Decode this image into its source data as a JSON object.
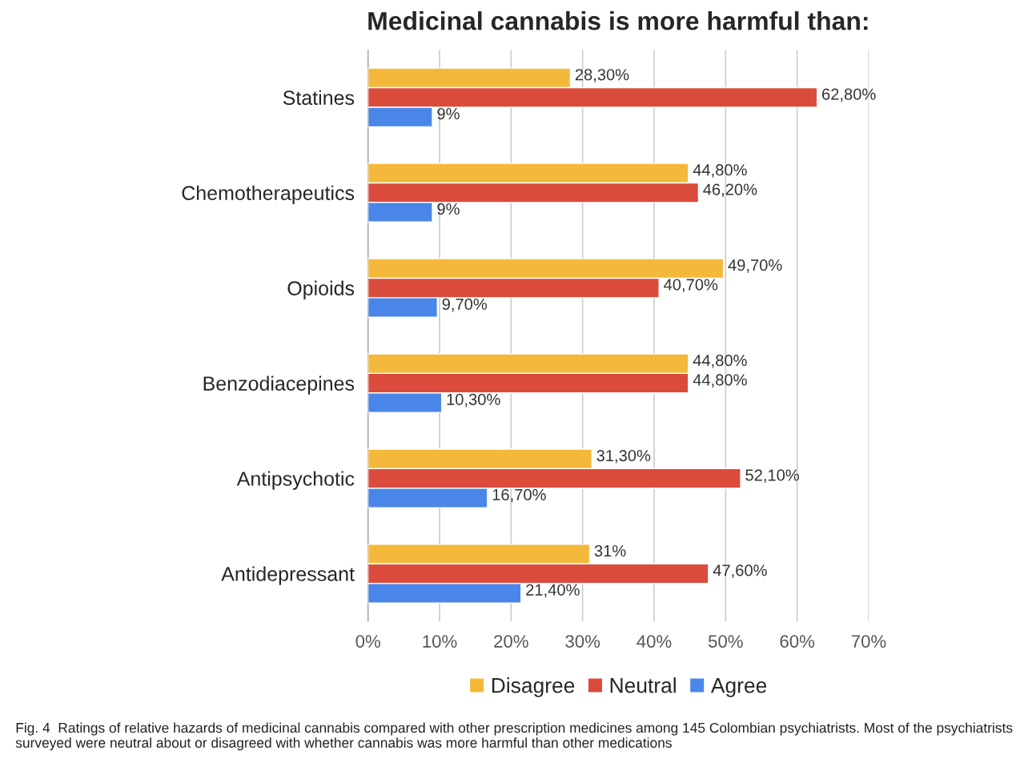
{
  "chart_data": {
    "type": "bar",
    "orientation": "horizontal",
    "title": "Medicinal cannabis is more harmful than:",
    "categories": [
      "Statines",
      "Chemotherapeutics",
      "Opioids",
      "Benzodiacepines",
      "Antipsychotic",
      "Antidepressant"
    ],
    "series": [
      {
        "name": "Disagree",
        "color": "#f4b93a",
        "values": [
          28.3,
          44.8,
          49.7,
          44.8,
          31.3,
          31
        ],
        "value_labels": [
          "28,30%",
          "44,80%",
          "49,70%",
          "44,80%",
          "31,30%",
          "31%"
        ]
      },
      {
        "name": "Neutral",
        "color": "#db4b3c",
        "values": [
          62.8,
          46.2,
          40.7,
          44.8,
          52.1,
          47.6
        ],
        "value_labels": [
          "62,80%",
          "46,20%",
          "40,70%",
          "44,80%",
          "52,10%",
          "47,60%"
        ]
      },
      {
        "name": "Agree",
        "color": "#4a86e8",
        "values": [
          9,
          9,
          9.7,
          10.3,
          16.7,
          21.4
        ],
        "value_labels": [
          "9%",
          "9%",
          "9,70%",
          "10,30%",
          "16,70%",
          "21,40%"
        ]
      }
    ],
    "xlim": [
      0,
      70
    ],
    "xticks": [
      {
        "value": 0,
        "label": "0%"
      },
      {
        "value": 10,
        "label": "10%"
      },
      {
        "value": 20,
        "label": "20%"
      },
      {
        "value": 30,
        "label": "30%"
      },
      {
        "value": 40,
        "label": "40%"
      },
      {
        "value": 50,
        "label": "50%"
      },
      {
        "value": 60,
        "label": "60%"
      },
      {
        "value": 70,
        "label": "70%"
      }
    ],
    "grid": "x",
    "legend": "bottom",
    "annotations": [
      "Fig. 4  Ratings of relative hazards of medicinal cannabis compared with other prescription medicines among 145 Colombian psychiatrists. Most of the psychiatrists surveyed were neutral about or disagreed with whether cannabis was more harmful than other medications"
    ]
  }
}
